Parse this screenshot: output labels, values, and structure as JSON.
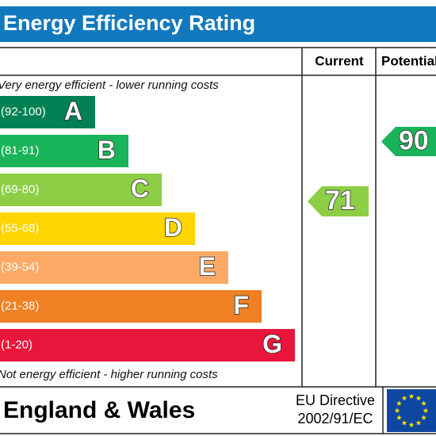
{
  "title": "Energy Efficiency Rating",
  "columns": {
    "current": "Current",
    "potential": "Potential"
  },
  "top_note": "Very energy efficient - lower running costs",
  "bands": [
    {
      "range": "(92-100)",
      "letter": "A"
    },
    {
      "range": "(81-91)",
      "letter": "B"
    },
    {
      "range": "(69-80)",
      "letter": "C"
    },
    {
      "range": "(55-68)",
      "letter": "D"
    },
    {
      "range": "(39-54)",
      "letter": "E"
    },
    {
      "range": "(21-38)",
      "letter": "F"
    },
    {
      "range": "(1-20)",
      "letter": "G"
    }
  ],
  "bottom_note": "Not energy efficient - higher running costs",
  "current": 71,
  "potential": 90,
  "footer": {
    "region": "England & Wales",
    "directive": [
      "EU Directive",
      "2002/91/EC"
    ]
  }
}
